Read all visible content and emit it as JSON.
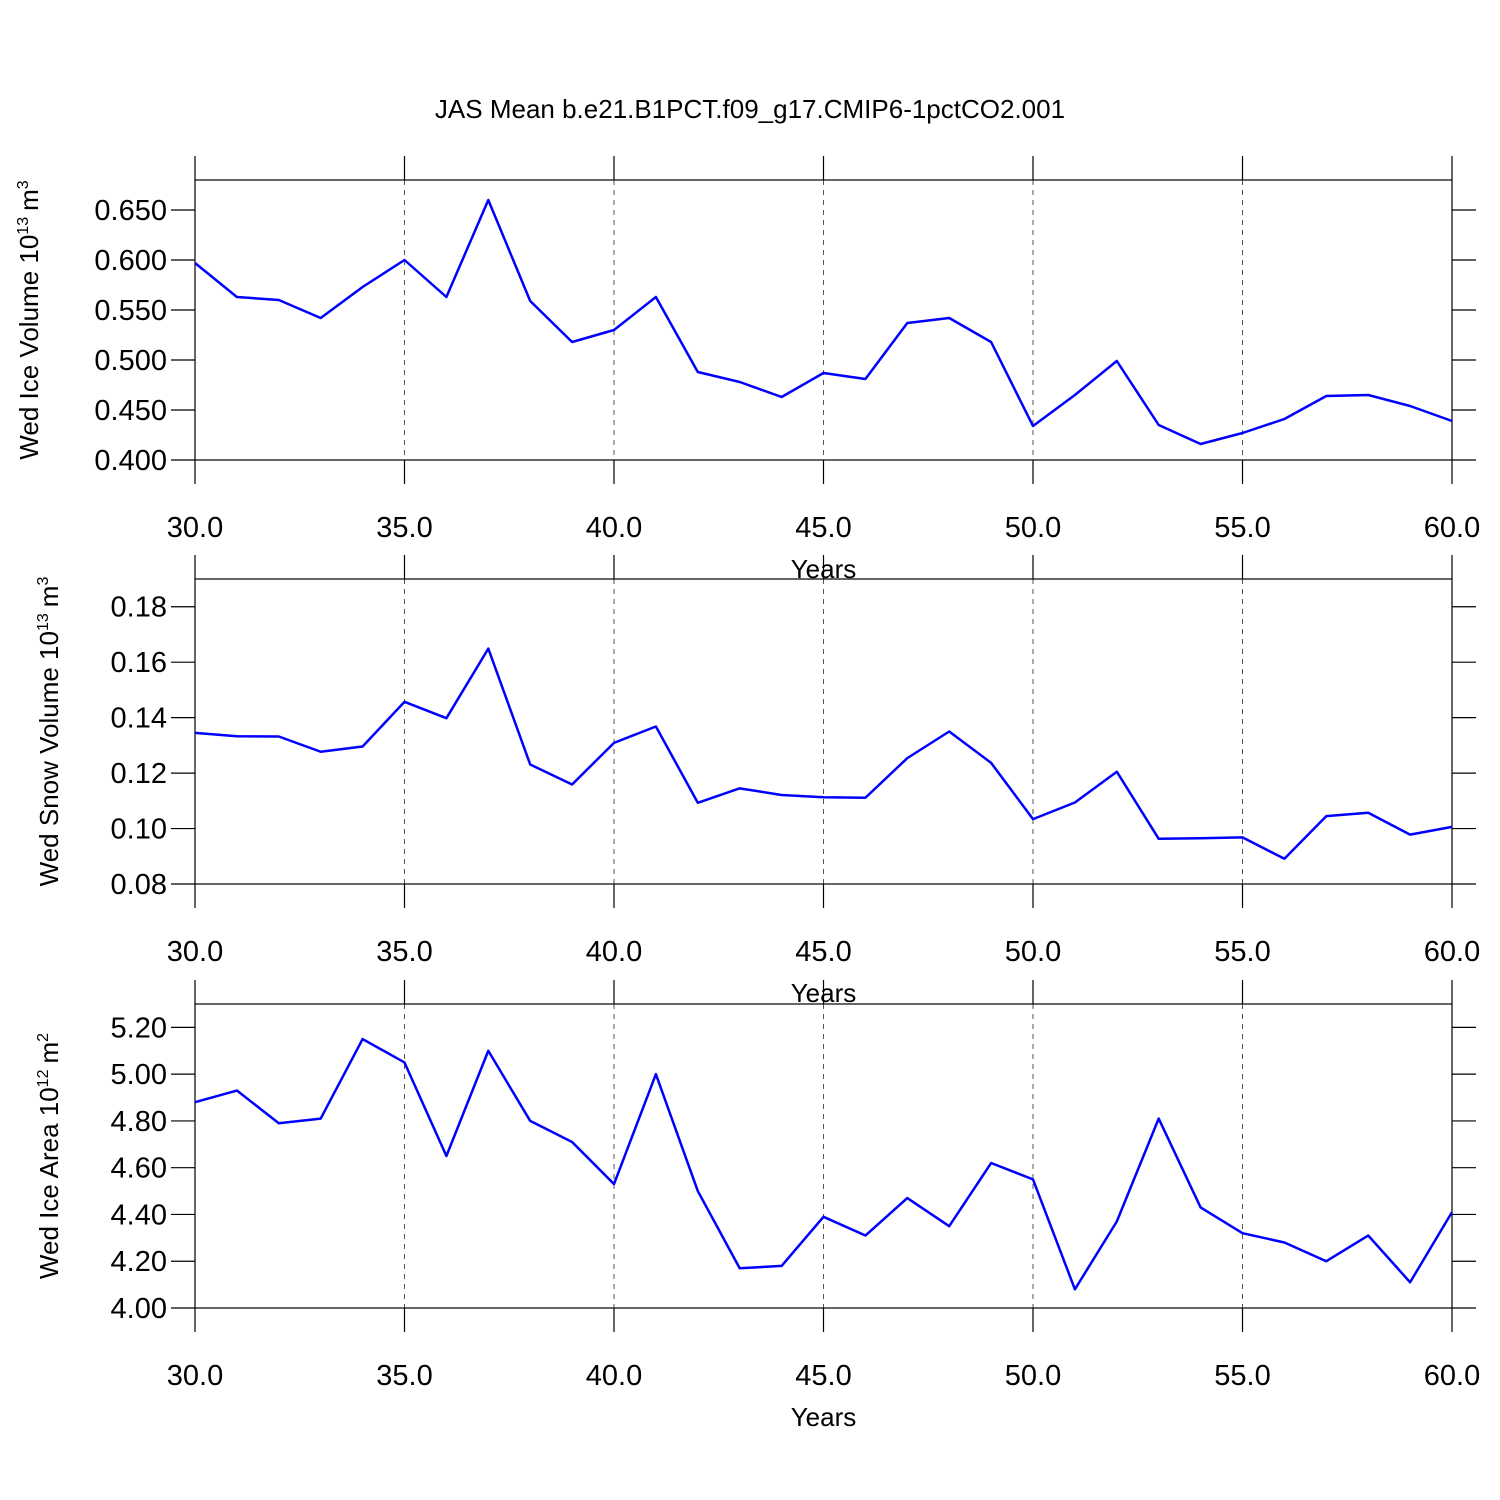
{
  "chart_data": [
    {
      "type": "line",
      "title": "JAS Mean b.e21.B1PCT.f09_g17.CMIP6-1pctCO2.001",
      "ylabel": "Wed Ice Volume 10",
      "ylabel_exp": "13",
      "ylabel_unit": "m",
      "ylabel_unit_exp": "3",
      "xlabel": "Years",
      "x": [
        30,
        31,
        32,
        33,
        34,
        35,
        36,
        37,
        38,
        39,
        40,
        41,
        42,
        43,
        44,
        45,
        46,
        47,
        48,
        49,
        50,
        51,
        52,
        53,
        54,
        55,
        56,
        57,
        58,
        59,
        60
      ],
      "series": [
        {
          "color": "#0000ff",
          "values": [
            0.597,
            0.563,
            0.56,
            0.542,
            0.573,
            0.6,
            0.563,
            0.66,
            0.559,
            0.518,
            0.53,
            0.563,
            0.488,
            0.478,
            0.463,
            0.487,
            0.481,
            0.537,
            0.542,
            0.518,
            0.434,
            0.465,
            0.499,
            0.435,
            0.416,
            0.427,
            0.441,
            0.464,
            0.465,
            0.454,
            0.439
          ]
        }
      ],
      "xlim": [
        30,
        60
      ],
      "xticks": [
        {
          "value": 30,
          "label": "30.0"
        },
        {
          "value": 35,
          "label": "35.0"
        },
        {
          "value": 40,
          "label": "40.0"
        },
        {
          "value": 45,
          "label": "45.0"
        },
        {
          "value": 50,
          "label": "50.0"
        },
        {
          "value": 55,
          "label": "55.0"
        },
        {
          "value": 60,
          "label": "60.0"
        }
      ],
      "ylim": [
        0.4,
        0.68
      ],
      "yticks": [
        {
          "value": 0.4,
          "label": "0.400"
        },
        {
          "value": 0.45,
          "label": "0.450"
        },
        {
          "value": 0.5,
          "label": "0.500"
        },
        {
          "value": 0.55,
          "label": "0.550"
        },
        {
          "value": 0.6,
          "label": "0.600"
        },
        {
          "value": 0.65,
          "label": "0.650"
        }
      ],
      "xgrid": true
    },
    {
      "type": "line",
      "ylabel": "Wed Snow Volume 10",
      "ylabel_exp": "13",
      "ylabel_unit": "m",
      "ylabel_unit_exp": "3",
      "xlabel": "Years",
      "x": [
        30,
        31,
        32,
        33,
        34,
        35,
        36,
        37,
        38,
        39,
        40,
        41,
        42,
        43,
        44,
        45,
        46,
        47,
        48,
        49,
        50,
        51,
        52,
        53,
        54,
        55,
        56,
        57,
        58,
        59,
        60
      ],
      "series": [
        {
          "color": "#0000ff",
          "values": [
            0.1345,
            0.1333,
            0.1332,
            0.1277,
            0.1296,
            0.1457,
            0.1398,
            0.1649,
            0.1231,
            0.1159,
            0.1309,
            0.1368,
            0.1093,
            0.1145,
            0.1121,
            0.1113,
            0.1111,
            0.1254,
            0.135,
            0.1237,
            0.1034,
            0.1094,
            0.1205,
            0.0963,
            0.0965,
            0.0968,
            0.0891,
            0.1045,
            0.1057,
            0.0978,
            0.1006
          ]
        }
      ],
      "xlim": [
        30,
        60
      ],
      "xticks": [
        {
          "value": 30,
          "label": "30.0"
        },
        {
          "value": 35,
          "label": "35.0"
        },
        {
          "value": 40,
          "label": "40.0"
        },
        {
          "value": 45,
          "label": "45.0"
        },
        {
          "value": 50,
          "label": "50.0"
        },
        {
          "value": 55,
          "label": "55.0"
        },
        {
          "value": 60,
          "label": "60.0"
        }
      ],
      "ylim": [
        0.08,
        0.19
      ],
      "yticks": [
        0.08,
        {
          "value": 0.1,
          "label": "0.10"
        },
        0.12,
        0.14,
        0.16,
        0.18
      ],
      "xgrid": true
    },
    {
      "type": "line",
      "ylabel": "Wed Ice Area 10",
      "ylabel_exp": "12",
      "ylabel_unit": "m",
      "ylabel_unit_exp": "2",
      "xlabel": "Years",
      "x": [
        30,
        31,
        32,
        33,
        34,
        35,
        36,
        37,
        38,
        39,
        40,
        41,
        42,
        43,
        44,
        45,
        46,
        47,
        48,
        49,
        50,
        51,
        52,
        53,
        54,
        55,
        56,
        57,
        58,
        59,
        60
      ],
      "series": [
        {
          "color": "#0000ff",
          "values": [
            4.88,
            4.93,
            4.79,
            4.81,
            5.15,
            5.05,
            4.65,
            5.1,
            4.8,
            4.71,
            4.53,
            5.0,
            4.5,
            4.17,
            4.18,
            4.39,
            4.31,
            4.47,
            4.35,
            4.62,
            4.55,
            4.08,
            4.37,
            4.81,
            4.43,
            4.32,
            4.28,
            4.2,
            4.31,
            4.11,
            4.41
          ]
        }
      ],
      "xlim": [
        30,
        60
      ],
      "xticks": [
        {
          "value": 30,
          "label": "30.0"
        },
        {
          "value": 35,
          "label": "35.0"
        },
        {
          "value": 40,
          "label": "40.0"
        },
        {
          "value": 45,
          "label": "45.0"
        },
        {
          "value": 50,
          "label": "50.0"
        },
        {
          "value": 55,
          "label": "55.0"
        },
        {
          "value": 60,
          "label": "60.0"
        }
      ],
      "ylim": [
        4.0,
        5.3
      ],
      "yticks": [
        {
          "value": 4,
          "label": "4.00"
        },
        {
          "value": 4.2,
          "label": "4.20"
        },
        {
          "value": 4.4,
          "label": "4.40"
        },
        {
          "value": 4.6,
          "label": "4.60"
        },
        {
          "value": 4.8,
          "label": "4.80"
        },
        {
          "value": 5,
          "label": "5.00"
        },
        {
          "value": 5.2,
          "label": "5.20"
        }
      ],
      "xgrid": true
    }
  ]
}
